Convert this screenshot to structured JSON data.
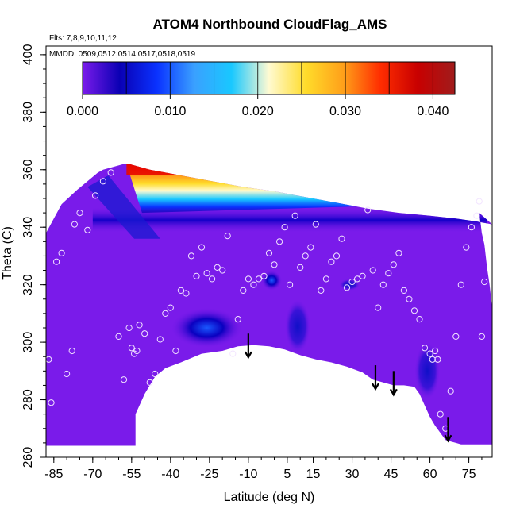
{
  "chart_data": {
    "type": "heatmap",
    "title": "ATOM4 Northbound CloudFlag_AMS",
    "subtitle_flights": "Flts: 7,8,9,10,11,12",
    "subtitle_dates": "MMDD: 0509,0512,0514,0517,0518,0519",
    "xlabel": "Latitude (deg N)",
    "ylabel": "Theta (C)",
    "xlim": [
      -88,
      84
    ],
    "ylim": [
      260,
      403
    ],
    "x_ticks": [
      -85,
      -70,
      -55,
      -40,
      -25,
      -10,
      5,
      15,
      30,
      45,
      60,
      75
    ],
    "y_ticks": [
      260,
      280,
      300,
      320,
      340,
      360,
      380,
      400
    ],
    "colorbar": {
      "min": 0.0,
      "max": 0.0425,
      "ticks": [
        0.0,
        0.01,
        0.02,
        0.03,
        0.04
      ],
      "tick_labels": [
        "0.000",
        "0.010",
        "0.020",
        "0.030",
        "0.040"
      ],
      "colors": [
        "#7a1bea",
        "#0a00b4",
        "#0a32ff",
        "#3aa0ff",
        "#19c8ff",
        "#fffad2",
        "#ffdc2a",
        "#ffa01a",
        "#ff2d00",
        "#c80000",
        "#a01c1c"
      ]
    },
    "background_value": 0.0,
    "surface_boundary": [
      [
        -88,
        264
      ],
      [
        -86,
        264
      ],
      [
        -84,
        264
      ],
      [
        -80,
        264
      ],
      [
        -76,
        264
      ],
      [
        -72,
        264
      ],
      [
        -66,
        264
      ],
      [
        -60,
        264
      ],
      [
        -54,
        264
      ],
      [
        -53.5,
        264
      ],
      [
        -53.5,
        275
      ],
      [
        -50,
        282
      ],
      [
        -46,
        288
      ],
      [
        -42,
        291
      ],
      [
        -36,
        293
      ],
      [
        -28,
        296
      ],
      [
        -20,
        297
      ],
      [
        -14,
        298.6
      ],
      [
        -8,
        299
      ],
      [
        -2,
        298.6
      ],
      [
        4,
        297.5
      ],
      [
        10,
        295.5
      ],
      [
        16,
        294
      ],
      [
        22,
        293
      ],
      [
        28,
        291.5
      ],
      [
        34,
        289.5
      ],
      [
        38,
        287
      ],
      [
        42,
        286
      ],
      [
        46,
        285
      ],
      [
        50,
        285
      ],
      [
        54,
        284.5
      ],
      [
        56,
        282
      ],
      [
        58,
        278
      ],
      [
        60,
        274
      ],
      [
        62,
        271
      ],
      [
        64,
        268.5
      ],
      [
        66,
        266
      ],
      [
        68,
        265.5
      ],
      [
        70,
        265
      ],
      [
        72,
        264.5
      ],
      [
        76,
        264.5
      ],
      [
        80,
        264.5
      ],
      [
        84,
        264.5
      ],
      [
        84,
        264
      ]
    ],
    "top_boundary": [
      [
        -88,
        338
      ],
      [
        -85,
        343
      ],
      [
        -82,
        348
      ],
      [
        -76,
        353
      ],
      [
        -72,
        356
      ],
      [
        -68,
        359
      ],
      [
        -66,
        360
      ],
      [
        -62,
        361
      ],
      [
        -58,
        362
      ],
      [
        -56,
        362
      ],
      [
        -48,
        360
      ],
      [
        -36,
        358
      ],
      [
        -24,
        356
      ],
      [
        -12,
        354
      ],
      [
        0,
        352.5
      ],
      [
        12,
        350.5
      ],
      [
        24,
        348.5
      ],
      [
        36,
        346.5
      ],
      [
        48,
        345
      ],
      [
        60,
        344
      ],
      [
        70,
        343
      ],
      [
        78,
        342
      ],
      [
        84,
        341
      ]
    ],
    "right_edge": [
      [
        79,
        345
      ],
      [
        80,
        338
      ],
      [
        81,
        334
      ],
      [
        82,
        326
      ],
      [
        83,
        320
      ],
      [
        84,
        312
      ],
      [
        84,
        300
      ],
      [
        84,
        264
      ]
    ],
    "features": [
      {
        "name": "high-cloud-wedge",
        "lat": [
          -57,
          80
        ],
        "theta": [
          345,
          362
        ],
        "peak": 0.04
      },
      {
        "name": "low-stripe",
        "lat": [
          -70,
          82
        ],
        "theta": [
          338,
          347
        ],
        "peak": 0.006
      },
      {
        "name": "blue-lobe",
        "lat": [
          -40,
          -12
        ],
        "theta": [
          298,
          312
        ],
        "peak": 0.012
      },
      {
        "name": "blue-spot",
        "lat": [
          -5,
          3
        ],
        "theta": [
          318,
          325
        ],
        "peak": 0.009
      },
      {
        "name": "spot-25",
        "lat": [
          25,
          33
        ],
        "theta": [
          318,
          322
        ],
        "peak": 0.005
      },
      {
        "name": "blue-streak",
        "lat": [
          4,
          14
        ],
        "theta": [
          296,
          315
        ],
        "peak": 0.007
      },
      {
        "name": "blue-region",
        "lat": [
          54,
          64
        ],
        "theta": [
          280,
          300
        ],
        "peak": 0.007
      }
    ],
    "sample_points": [
      [
        -87,
        294
      ],
      [
        -86,
        279
      ],
      [
        -84,
        328
      ],
      [
        -82,
        331
      ],
      [
        -80,
        289
      ],
      [
        -78,
        297
      ],
      [
        -77,
        341
      ],
      [
        -75,
        345
      ],
      [
        -72,
        339
      ],
      [
        -69,
        351
      ],
      [
        -66,
        356
      ],
      [
        -63,
        359
      ],
      [
        -60,
        302
      ],
      [
        -58,
        287
      ],
      [
        -56,
        305
      ],
      [
        -55,
        298
      ],
      [
        -54,
        296
      ],
      [
        -53,
        297
      ],
      [
        -52,
        306
      ],
      [
        -50,
        303
      ],
      [
        -48,
        286
      ],
      [
        -46,
        289
      ],
      [
        -44,
        301
      ],
      [
        -42,
        310
      ],
      [
        -40,
        312
      ],
      [
        -38,
        297
      ],
      [
        -36,
        318
      ],
      [
        -34,
        317
      ],
      [
        -32,
        330
      ],
      [
        -30,
        323
      ],
      [
        -28,
        333
      ],
      [
        -26,
        324
      ],
      [
        -24,
        322
      ],
      [
        -22,
        326
      ],
      [
        -20,
        325
      ],
      [
        -18,
        337
      ],
      [
        -16,
        296
      ],
      [
        -14,
        308
      ],
      [
        -12,
        318
      ],
      [
        -10,
        322
      ],
      [
        -8,
        320
      ],
      [
        -6,
        322
      ],
      [
        -4,
        323
      ],
      [
        -2,
        331
      ],
      [
        0,
        327
      ],
      [
        2,
        335
      ],
      [
        4,
        340
      ],
      [
        6,
        320
      ],
      [
        8,
        344
      ],
      [
        10,
        326
      ],
      [
        12,
        330
      ],
      [
        14,
        333
      ],
      [
        16,
        341
      ],
      [
        18,
        318
      ],
      [
        20,
        322
      ],
      [
        22,
        328
      ],
      [
        24,
        330
      ],
      [
        26,
        336
      ],
      [
        28,
        319
      ],
      [
        30,
        321
      ],
      [
        32,
        322
      ],
      [
        34,
        323
      ],
      [
        36,
        346
      ],
      [
        38,
        325
      ],
      [
        40,
        312
      ],
      [
        42,
        320
      ],
      [
        44,
        324
      ],
      [
        46,
        327
      ],
      [
        48,
        331
      ],
      [
        50,
        318
      ],
      [
        52,
        315
      ],
      [
        54,
        311
      ],
      [
        56,
        308
      ],
      [
        58,
        298
      ],
      [
        60,
        296
      ],
      [
        61,
        294
      ],
      [
        62,
        297
      ],
      [
        63,
        294
      ],
      [
        64,
        275
      ],
      [
        66,
        270
      ],
      [
        68,
        283
      ],
      [
        70,
        302
      ],
      [
        72,
        320
      ],
      [
        74,
        333
      ],
      [
        76,
        340
      ],
      [
        78,
        344
      ],
      [
        79,
        349
      ],
      [
        80,
        302
      ],
      [
        81,
        321
      ]
    ],
    "arrows": [
      {
        "lat": -10,
        "theta": 303
      },
      {
        "lat": 39,
        "theta": 292
      },
      {
        "lat": 46,
        "theta": 290
      },
      {
        "lat": 67,
        "theta": 274
      }
    ]
  }
}
